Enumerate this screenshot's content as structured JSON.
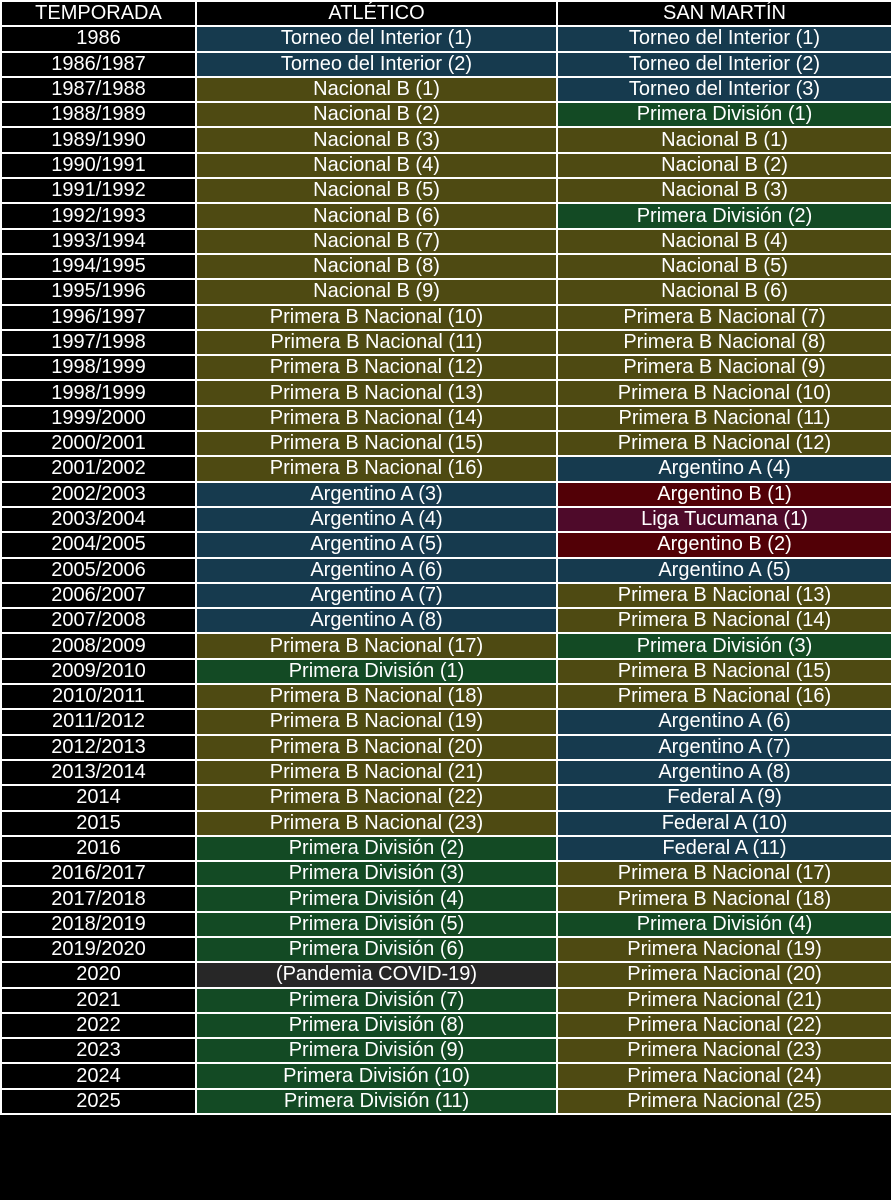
{
  "colors": {
    "Torneo del Interior": "#163a4e",
    "Argentino A": "#163a4e",
    "Federal A": "#163a4e",
    "Nacional B": "#4e4a12",
    "Primera B Nacional": "#4e4a12",
    "Primera Nacional": "#4e4a12",
    "Primera División": "#134a24",
    "Argentino B": "#520006",
    "Liga Tucumana": "#4e0a2a",
    "(Pandemia COVID-19)": "#272727"
  },
  "headers": [
    "TEMPORADA",
    "ATLÉTICO",
    "SAN MARTÍN"
  ],
  "rows": [
    [
      "1986",
      "Torneo del Interior (1)",
      "Torneo del Interior (1)"
    ],
    [
      "1986/1987",
      "Torneo del Interior (2)",
      "Torneo del Interior (2)"
    ],
    [
      "1987/1988",
      "Nacional B (1)",
      "Torneo del Interior (3)"
    ],
    [
      "1988/1989",
      "Nacional B (2)",
      "Primera División (1)"
    ],
    [
      "1989/1990",
      "Nacional B (3)",
      "Nacional B (1)"
    ],
    [
      "1990/1991",
      "Nacional B (4)",
      "Nacional B (2)"
    ],
    [
      "1991/1992",
      "Nacional B (5)",
      "Nacional B (3)"
    ],
    [
      "1992/1993",
      "Nacional B (6)",
      "Primera División (2)"
    ],
    [
      "1993/1994",
      "Nacional B (7)",
      "Nacional B (4)"
    ],
    [
      "1994/1995",
      "Nacional B (8)",
      "Nacional B (5)"
    ],
    [
      "1995/1996",
      "Nacional B (9)",
      "Nacional B (6)"
    ],
    [
      "1996/1997",
      "Primera B Nacional (10)",
      "Primera B Nacional (7)"
    ],
    [
      "1997/1998",
      "Primera B Nacional (11)",
      "Primera B Nacional (8)"
    ],
    [
      "1998/1999",
      "Primera B Nacional (12)",
      "Primera B Nacional (9)"
    ],
    [
      "1998/1999",
      "Primera B Nacional (13)",
      "Primera B Nacional (10)"
    ],
    [
      "1999/2000",
      "Primera B Nacional (14)",
      "Primera B Nacional (11)"
    ],
    [
      "2000/2001",
      "Primera B Nacional (15)",
      "Primera B Nacional (12)"
    ],
    [
      "2001/2002",
      "Primera B Nacional (16)",
      "Argentino A (4)"
    ],
    [
      "2002/2003",
      "Argentino A (3)",
      "Argentino B (1)"
    ],
    [
      "2003/2004",
      "Argentino A (4)",
      "Liga Tucumana (1)"
    ],
    [
      "2004/2005",
      "Argentino A (5)",
      "Argentino B (2)"
    ],
    [
      "2005/2006",
      "Argentino A (6)",
      "Argentino A (5)"
    ],
    [
      "2006/2007",
      "Argentino A (7)",
      "Primera B Nacional (13)"
    ],
    [
      "2007/2008",
      "Argentino A (8)",
      "Primera B Nacional (14)"
    ],
    [
      "2008/2009",
      "Primera B Nacional (17)",
      "Primera División (3)"
    ],
    [
      "2009/2010",
      "Primera División (1)",
      "Primera B Nacional (15)"
    ],
    [
      "2010/2011",
      "Primera B Nacional (18)",
      "Primera B Nacional (16)"
    ],
    [
      "2011/2012",
      "Primera B Nacional (19)",
      "Argentino A (6)"
    ],
    [
      "2012/2013",
      "Primera B Nacional (20)",
      "Argentino A (7)"
    ],
    [
      "2013/2014",
      "Primera B Nacional (21)",
      "Argentino A (8)"
    ],
    [
      "2014",
      "Primera B Nacional (22)",
      "Federal A (9)"
    ],
    [
      "2015",
      "Primera B Nacional (23)",
      "Federal A (10)"
    ],
    [
      "2016",
      "Primera División (2)",
      "Federal A (11)"
    ],
    [
      "2016/2017",
      "Primera División (3)",
      "Primera B Nacional (17)"
    ],
    [
      "2017/2018",
      "Primera División (4)",
      "Primera B Nacional (18)"
    ],
    [
      "2018/2019",
      "Primera División (5)",
      "Primera División (4)"
    ],
    [
      "2019/2020",
      "Primera División (6)",
      "Primera Nacional (19)"
    ],
    [
      "2020",
      "(Pandemia COVID-19)",
      "Primera Nacional (20)"
    ],
    [
      "2021",
      "Primera División (7)",
      "Primera Nacional (21)"
    ],
    [
      "2022",
      "Primera División (8)",
      "Primera Nacional (22)"
    ],
    [
      "2023",
      "Primera División (9)",
      "Primera Nacional (23)"
    ],
    [
      "2024",
      "Primera División (10)",
      "Primera Nacional (24)"
    ],
    [
      "2025",
      "Primera División (11)",
      "Primera Nacional (25)"
    ]
  ]
}
